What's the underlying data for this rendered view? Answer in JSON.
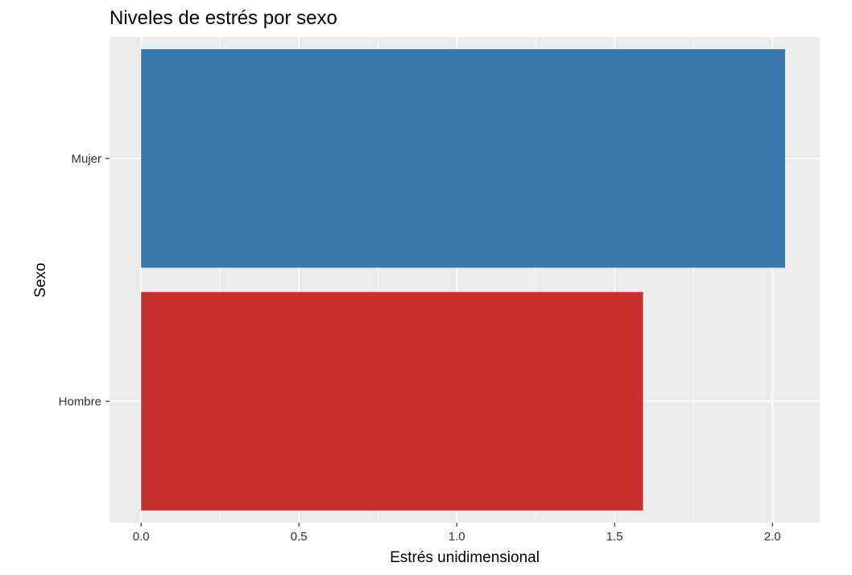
{
  "chart_data": {
    "type": "bar",
    "orientation": "horizontal",
    "title": "Niveles de estrés por sexo",
    "xlabel": "Estrés unidimensional",
    "ylabel": "Sexo",
    "categories": [
      "Hombre",
      "Mujer"
    ],
    "values": [
      1.59,
      2.04
    ],
    "bar_colors": [
      "#c8302e",
      "#3878ab"
    ],
    "xlim": [
      -0.1,
      2.15
    ],
    "x_ticks": [
      0.0,
      0.5,
      1.0,
      1.5,
      2.0
    ],
    "x_tick_labels": [
      "0.0",
      "0.5",
      "1.0",
      "1.5",
      "2.0"
    ],
    "grid": true,
    "legend": "none"
  },
  "colors": {
    "panel_background": "#ebebeb",
    "gridline": "#ffffff",
    "tick_text": "#333333"
  }
}
